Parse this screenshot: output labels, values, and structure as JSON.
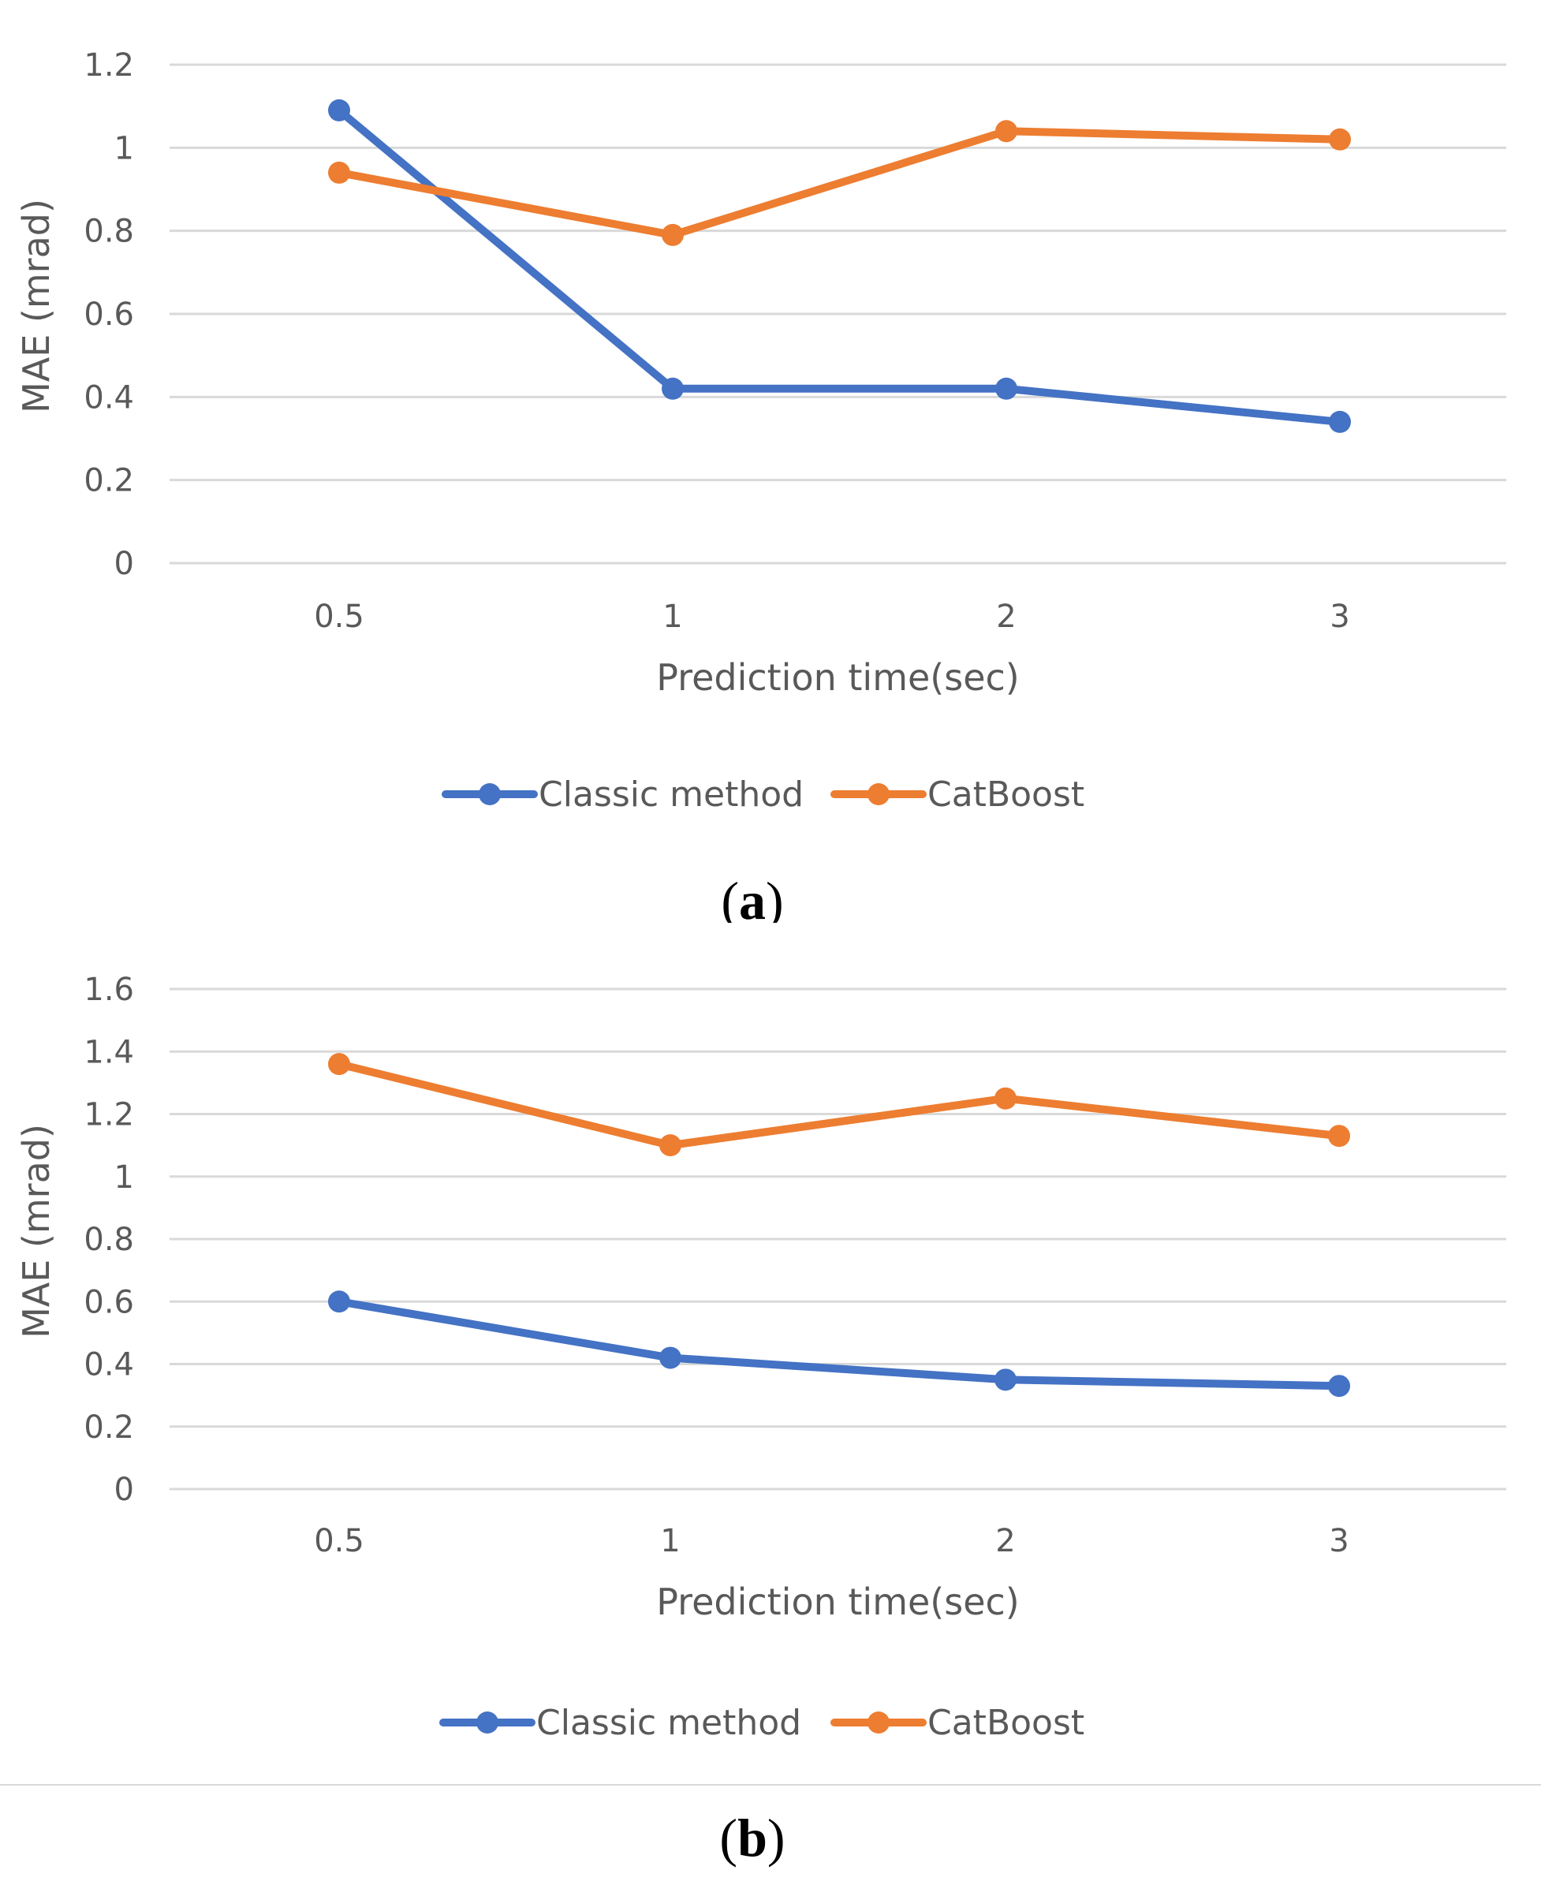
{
  "colors": {
    "classic": "#4472C4",
    "catboost": "#ED7D31",
    "grid": "#d9d9d9",
    "text": "#595959"
  },
  "chart_data": [
    {
      "id": "a",
      "type": "line",
      "panel_label": "(a)",
      "panel_letter": "a",
      "categories": [
        "0.5",
        "1",
        "2",
        "3"
      ],
      "series": [
        {
          "name": "Classic method",
          "values": [
            1.09,
            0.42,
            0.42,
            0.34
          ]
        },
        {
          "name": "CatBoost",
          "values": [
            0.94,
            0.79,
            1.04,
            1.02
          ]
        }
      ],
      "xlabel": "Prediction time(sec)",
      "ylabel": "MAE (mrad)",
      "ylim": [
        0,
        1.2
      ],
      "yticks": [
        "0",
        "0.2",
        "0.4",
        "0.6",
        "0.8",
        "1",
        "1.2"
      ],
      "grid": true,
      "legend": "bottom"
    },
    {
      "id": "b",
      "type": "line",
      "panel_label": "(b)",
      "panel_letter": "b",
      "categories": [
        "0.5",
        "1",
        "2",
        "3"
      ],
      "series": [
        {
          "name": "Classic method",
          "values": [
            0.6,
            0.42,
            0.35,
            0.33
          ]
        },
        {
          "name": "CatBoost",
          "values": [
            1.36,
            1.1,
            1.25,
            1.13
          ]
        }
      ],
      "xlabel": "Prediction time(sec)",
      "ylabel": "MAE (mrad)",
      "ylim": [
        0,
        1.6
      ],
      "yticks": [
        "0",
        "0.2",
        "0.4",
        "0.6",
        "0.8",
        "1",
        "1.2",
        "1.4",
        "1.6"
      ],
      "grid": true,
      "legend": "bottom"
    }
  ]
}
